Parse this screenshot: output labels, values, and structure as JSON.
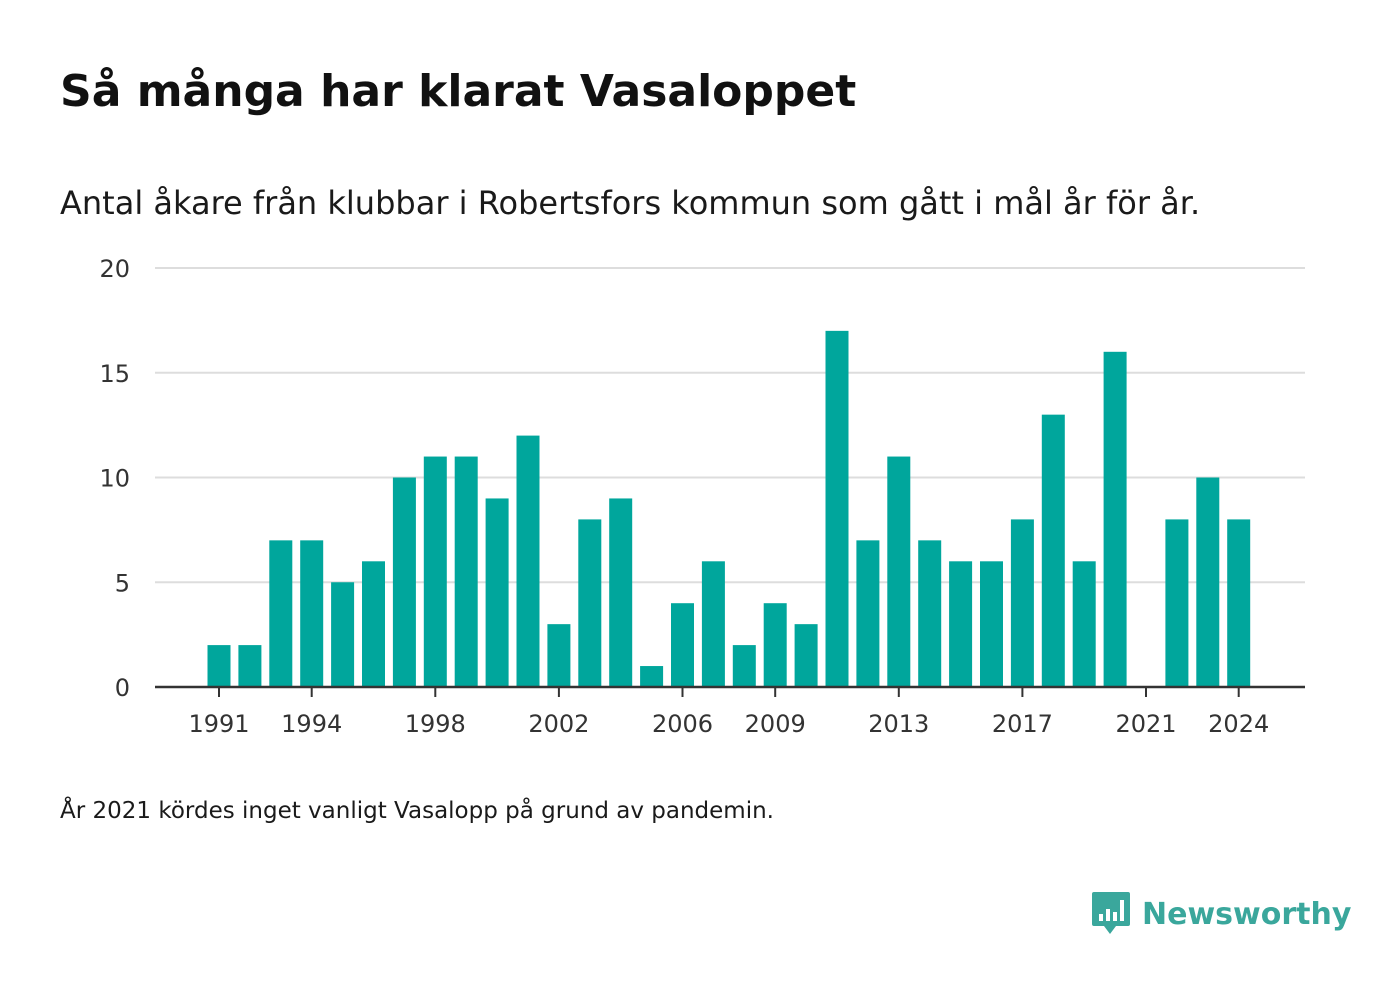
{
  "title": "Så många har klarat Vasaloppet",
  "subtitle": "Antal åkare från klubbar i Robertsfors kommun som gått i mål år för år.",
  "footnote": "År 2021 kördes inget vanligt Vasalopp på grund av pandemin.",
  "brand": {
    "name": "Newsworthy",
    "icon": "newsworthy-logo-icon",
    "color": "#3aa79c"
  },
  "colors": {
    "bar": "#00a69c",
    "grid": "#dddddd",
    "axis": "#333333"
  },
  "chart_data": {
    "type": "bar",
    "categories": [
      1991,
      1992,
      1993,
      1994,
      1995,
      1996,
      1997,
      1998,
      1999,
      2000,
      2001,
      2002,
      2003,
      2004,
      2005,
      2006,
      2007,
      2008,
      2009,
      2010,
      2011,
      2012,
      2013,
      2014,
      2015,
      2016,
      2017,
      2018,
      2019,
      2020,
      2021,
      2022,
      2023,
      2024
    ],
    "values": [
      2,
      2,
      7,
      7,
      5,
      6,
      10,
      11,
      11,
      9,
      12,
      3,
      8,
      9,
      1,
      4,
      6,
      2,
      4,
      3,
      17,
      7,
      11,
      7,
      6,
      6,
      8,
      13,
      6,
      16,
      0,
      8,
      10,
      8
    ],
    "x_tick_labels": [
      "1991",
      "1994",
      "1998",
      "2002",
      "2006",
      "2009",
      "2013",
      "2017",
      "2021",
      "2024"
    ],
    "y_ticks": [
      0,
      5,
      10,
      15,
      20
    ],
    "ylim": [
      0,
      20
    ],
    "grid": true,
    "legend": "none"
  }
}
